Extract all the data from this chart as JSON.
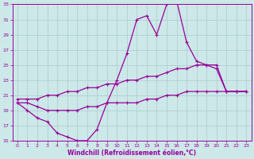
{
  "xlabel": "Windchill (Refroidissement éolien,°C)",
  "bg_color": "#cce8e8",
  "grid_color": "#b0d0d0",
  "line_color": "#990099",
  "xlim": [
    -0.5,
    23.5
  ],
  "ylim": [
    15,
    33
  ],
  "xticks": [
    0,
    1,
    2,
    3,
    4,
    5,
    6,
    7,
    8,
    9,
    10,
    11,
    12,
    13,
    14,
    15,
    16,
    17,
    18,
    19,
    20,
    21,
    22,
    23
  ],
  "yticks": [
    15,
    17,
    19,
    21,
    23,
    25,
    27,
    29,
    31,
    33
  ],
  "series1_x": [
    0,
    1,
    2,
    3,
    4,
    5,
    6,
    7,
    8,
    9,
    10,
    11,
    12,
    13,
    14,
    15,
    16,
    17,
    18,
    19,
    20,
    21,
    22,
    23
  ],
  "series1_y": [
    20,
    19,
    18,
    17.5,
    16,
    15.5,
    15,
    15,
    16.5,
    20,
    23,
    26.5,
    31,
    31.5,
    29,
    33,
    33.5,
    28,
    25.5,
    25,
    24.5,
    21.5,
    21.5,
    21.5
  ],
  "series2_x": [
    0,
    1,
    2,
    3,
    4,
    5,
    6,
    7,
    8,
    9,
    10,
    11,
    12,
    13,
    14,
    15,
    16,
    17,
    18,
    19,
    20,
    21,
    22,
    23
  ],
  "series2_y": [
    20.5,
    20.5,
    20.5,
    21,
    21,
    21.5,
    21.5,
    22,
    22,
    22.5,
    22.5,
    23,
    23,
    23.5,
    23.5,
    24,
    24.5,
    24.5,
    25,
    25,
    25,
    21.5,
    21.5,
    21.5
  ],
  "series3_x": [
    0,
    1,
    2,
    3,
    4,
    5,
    6,
    7,
    8,
    9,
    10,
    11,
    12,
    13,
    14,
    15,
    16,
    17,
    18,
    19,
    20,
    21,
    22,
    23
  ],
  "series3_y": [
    20,
    20,
    19.5,
    19,
    19,
    19,
    19,
    19.5,
    19.5,
    20,
    20,
    20,
    20,
    20.5,
    20.5,
    21,
    21,
    21.5,
    21.5,
    21.5,
    21.5,
    21.5,
    21.5,
    21.5
  ]
}
